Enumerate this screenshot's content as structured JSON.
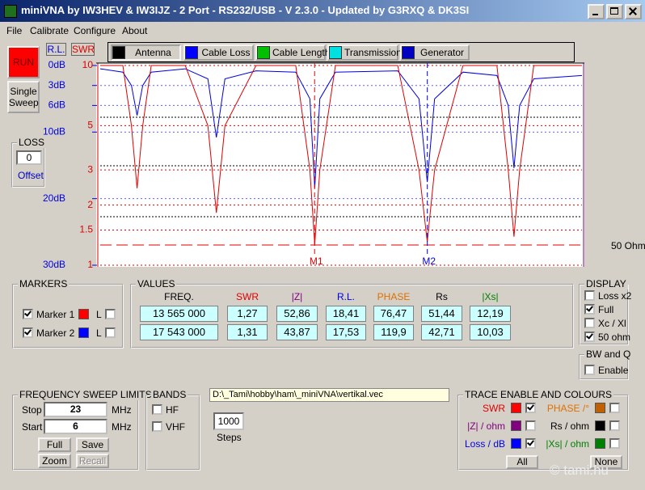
{
  "window": {
    "title": "miniVNA by IW3HEV & IW3IJZ - 2 Port - RS232/USB - V 2.3.0 - Updated by G3RXQ & DK3SI"
  },
  "menu": [
    "File",
    "Calibrate",
    "Configure",
    "About"
  ],
  "buttons": {
    "run": "RUN",
    "single_sweep": "Single Sweep"
  },
  "toolbar": [
    {
      "label": "Antenna",
      "color": "#000000",
      "active": true
    },
    {
      "label": "Cable Loss",
      "color": "#0000ff",
      "active": false
    },
    {
      "label": "Cable Length",
      "color": "#00c000",
      "active": false
    },
    {
      "label": "Transmission",
      "color": "#00e0e0",
      "active": false
    },
    {
      "label": "Generator",
      "color": "#0000c0",
      "active": false
    }
  ],
  "loss": {
    "title": "LOSS",
    "value": "0",
    "label": "Offset"
  },
  "chart_data": {
    "type": "line",
    "xlim": [
      6,
      23
    ],
    "ylim": [
      30,
      0
    ],
    "yticks": [
      {
        "value": 0,
        "label": "0dB"
      },
      {
        "value": 3,
        "label": "3dB"
      },
      {
        "value": 6,
        "label": "6dB"
      },
      {
        "value": 10,
        "label": "10dB"
      },
      {
        "value": 20,
        "label": "20dB"
      },
      {
        "value": 30,
        "label": "30dB"
      }
    ],
    "y2lim": [
      1,
      10
    ],
    "y2_log": true,
    "y2ticks": [
      10,
      5,
      3,
      2,
      1.5,
      1
    ],
    "grid": true,
    "x": [
      6,
      6.8,
      7.1,
      7.3,
      7.5,
      7.8,
      9.0,
      9.8,
      10.1,
      10.4,
      11.5,
      12.9,
      13.4,
      13.57,
      13.75,
      14.3,
      16.5,
      17.25,
      17.54,
      17.8,
      18.8,
      20.0,
      20.4,
      20.6,
      20.8,
      21.3,
      23
    ],
    "series": [
      {
        "name": "R.L.",
        "color": "#0000e0",
        "axis": "y",
        "values": [
          0.5,
          1,
          3,
          7.5,
          3,
          1,
          0.5,
          2,
          10.8,
          2,
          0.8,
          1,
          5,
          18.4,
          5,
          1,
          0.8,
          5,
          17.5,
          5,
          1,
          1.5,
          6,
          15.4,
          6,
          2,
          1.5
        ]
      },
      {
        "name": "SWR",
        "color": "#e00000",
        "axis": "y2",
        "values": [
          10,
          10,
          5,
          2.43,
          5,
          10,
          10,
          5,
          1.83,
          5,
          10,
          10,
          3,
          1.27,
          3,
          10,
          10,
          3,
          1.31,
          3,
          10,
          10,
          3,
          1.39,
          3,
          10,
          10
        ]
      }
    ],
    "markers": [
      {
        "label": "M1",
        "x": 13.565,
        "color": "#e00000"
      },
      {
        "label": "M2",
        "x": 17.543,
        "color": "#0000e0"
      }
    ],
    "reference_label": "50 Ohm"
  },
  "markers": {
    "title": "MARKERS",
    "rows": [
      {
        "label": "Marker 1",
        "checked": true,
        "color": "#ff0000",
        "l": "L",
        "l_checked": false
      },
      {
        "label": "Marker 2",
        "checked": true,
        "color": "#0000ff",
        "l": "L",
        "l_checked": false
      }
    ]
  },
  "values": {
    "title": "VALUES",
    "headers": [
      {
        "text": "FREQ.",
        "color": "#000000"
      },
      {
        "text": "SWR",
        "color": "#e00000"
      },
      {
        "text": "|Z|",
        "color": "#800080"
      },
      {
        "text": "R.L.",
        "color": "#0000e0"
      },
      {
        "text": "PHASE",
        "color": "#e07000"
      },
      {
        "text": "Rs",
        "color": "#000000"
      },
      {
        "text": "|Xs|",
        "color": "#008000"
      }
    ],
    "rows": [
      [
        "13 565 000",
        "1,27",
        "52,86",
        "18,41",
        "76,47",
        "51,44",
        "12,19"
      ],
      [
        "17 543 000",
        "1,31",
        "43,87",
        "17,53",
        "119,9",
        "42,71",
        "10,03"
      ]
    ]
  },
  "display": {
    "title": "DISPLAY",
    "options": [
      {
        "label": "Loss x2",
        "checked": false
      },
      {
        "label": "Full",
        "checked": true
      },
      {
        "label": "Xc / Xl",
        "checked": false
      },
      {
        "label": "50 ohm",
        "checked": true
      }
    ]
  },
  "bw_q": {
    "title": "BW and Q",
    "options": [
      {
        "label": "Enable",
        "checked": false
      }
    ]
  },
  "sweep": {
    "title": "FREQUENCY SWEEP LIMITS",
    "stop_label": "Stop",
    "stop": "23",
    "start_label": "Start",
    "start": "6",
    "unit": "MHz",
    "buttons": [
      {
        "label": "Full",
        "enabled": true
      },
      {
        "label": "Save",
        "enabled": true
      },
      {
        "label": "Zoom",
        "enabled": true
      },
      {
        "label": "Recall",
        "enabled": false
      }
    ]
  },
  "bands": {
    "title": "BANDS",
    "options": [
      {
        "label": "HF",
        "checked": false
      },
      {
        "label": "VHF",
        "checked": false
      }
    ]
  },
  "file_path": "D:\\_Tami\\hobby\\ham\\_miniVNA\\vertikal.vec",
  "steps": {
    "value": "1000",
    "label": "Steps"
  },
  "traces": {
    "title": "TRACE ENABLE AND COLOURS",
    "items": [
      {
        "label": "SWR",
        "text_color": "#e00000",
        "color": "#ff0000",
        "checked": true
      },
      {
        "label": "|Z| / ohm",
        "text_color": "#800080",
        "color": "#800080",
        "checked": false
      },
      {
        "label": "Loss / dB",
        "text_color": "#0000e0",
        "color": "#0000ff",
        "checked": true
      },
      {
        "label": "PHASE /°",
        "text_color": "#e07000",
        "color": "#c06000",
        "checked": false
      },
      {
        "label": "Rs / ohm",
        "text_color": "#000000",
        "color": "#000000",
        "checked": false
      },
      {
        "label": "|Xs| / ohm",
        "text_color": "#008000",
        "color": "#008000",
        "checked": false
      }
    ],
    "all": "All",
    "none": "None"
  },
  "watermark": "© tami.hu"
}
